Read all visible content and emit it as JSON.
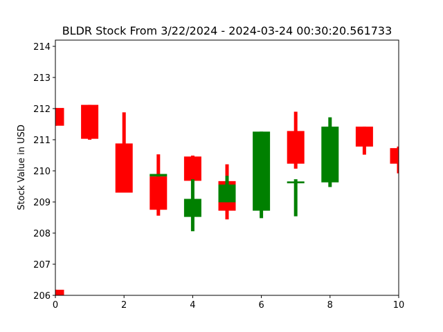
{
  "chart_data": {
    "type": "candlestick",
    "title": "BLDR Stock From 3/22/2024 - 2024-03-24 00:30:20.561733",
    "xlabel": "",
    "ylabel": "Stock Value in USD",
    "xlim": [
      0,
      10
    ],
    "ylim": [
      206,
      214.2
    ],
    "x_ticks": [
      "0",
      "2",
      "4",
      "6",
      "8",
      "10"
    ],
    "y_ticks": [
      "206",
      "207",
      "208",
      "209",
      "210",
      "211",
      "212",
      "213",
      "214"
    ],
    "up_color": "#008000",
    "down_color": "#ff0000",
    "candles": [
      {
        "x": 0,
        "open": 212.02,
        "close": 211.45,
        "high": 212.02,
        "low": 211.45
      },
      {
        "x": 0,
        "open": 206.18,
        "close": 206.0,
        "high": 206.18,
        "low": 206.0
      },
      {
        "x": 1,
        "open": 212.12,
        "close": 211.03,
        "high": 212.12,
        "low": 211.0
      },
      {
        "x": 2,
        "open": 210.88,
        "close": 209.3,
        "high": 211.88,
        "low": 209.3
      },
      {
        "x": 3,
        "open": 209.82,
        "close": 208.75,
        "high": 210.53,
        "low": 208.56
      },
      {
        "x": 3,
        "open": 209.82,
        "close": 209.9,
        "high": 209.9,
        "low": 209.82
      },
      {
        "x": 4,
        "open": 210.46,
        "close": 209.68,
        "high": 210.49,
        "low": 209.68
      },
      {
        "x": 4,
        "open": 208.52,
        "close": 209.1,
        "high": 209.73,
        "low": 208.06
      },
      {
        "x": 5,
        "open": 209.67,
        "close": 208.72,
        "high": 210.21,
        "low": 208.44
      },
      {
        "x": 5,
        "open": 208.99,
        "close": 209.56,
        "high": 209.84,
        "low": 208.99
      },
      {
        "x": 6,
        "open": 208.72,
        "close": 211.26,
        "high": 211.26,
        "low": 208.48
      },
      {
        "x": 7,
        "open": 211.28,
        "close": 210.23,
        "high": 211.9,
        "low": 210.07
      },
      {
        "x": 7,
        "open": 209.6,
        "close": 209.66,
        "high": 209.73,
        "low": 208.54
      },
      {
        "x": 8,
        "open": 209.63,
        "close": 211.42,
        "high": 211.72,
        "low": 209.48
      },
      {
        "x": 9,
        "open": 211.42,
        "close": 210.78,
        "high": 211.42,
        "low": 210.52
      },
      {
        "x": 10,
        "open": 210.73,
        "close": 210.23,
        "high": 210.78,
        "low": 209.92
      }
    ]
  }
}
